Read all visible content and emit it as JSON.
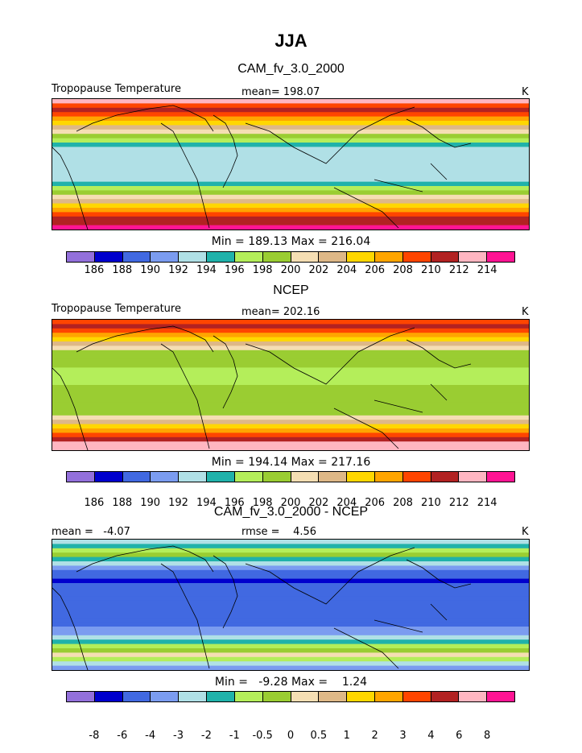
{
  "figure_title": "JJA",
  "colors": {
    "abs_scale": [
      "#9370db",
      "#0000cd",
      "#4169e1",
      "#7b9cf0",
      "#b0e0e6",
      "#20b2aa",
      "#b4ee5a",
      "#9acd32",
      "#f5deb3",
      "#deb887",
      "#ffd700",
      "#ffa500",
      "#ff4500",
      "#b22222",
      "#ffb6c1",
      "#ff1493"
    ],
    "diff_scale": [
      "#9370db",
      "#0000cd",
      "#4169e1",
      "#7b9cf0",
      "#b0e0e6",
      "#20b2aa",
      "#b4ee5a",
      "#9acd32",
      "#f5deb3",
      "#deb887",
      "#ffd700",
      "#ffa500",
      "#ff4500",
      "#b22222",
      "#ffb6c1",
      "#ff1493"
    ],
    "coastline": "#000000"
  },
  "panels": [
    {
      "title": "CAM_fv_3.0_2000",
      "variable": "Tropopause Temperature",
      "mean_label": "mean= 198.07",
      "units": "K",
      "stats": "Min = 189.13 Max = 216.04",
      "ticks": [
        "186",
        "188",
        "190",
        "192",
        "194",
        "196",
        "198",
        "200",
        "202",
        "204",
        "206",
        "208",
        "210",
        "212",
        "214"
      ],
      "bands": [
        14,
        12,
        13,
        12,
        11,
        10,
        9,
        8,
        7,
        6,
        5,
        4,
        4,
        4,
        4,
        4,
        4,
        4,
        4,
        5,
        6,
        7,
        8,
        9,
        10,
        11,
        12,
        13,
        13,
        15
      ]
    },
    {
      "title": "NCEP",
      "variable": "Tropopause Temperature",
      "mean_label": "mean= 202.16",
      "units": "K",
      "stats": "Min = 194.14 Max = 217.16",
      "ticks": [
        "186",
        "188",
        "190",
        "192",
        "194",
        "196",
        "198",
        "200",
        "202",
        "204",
        "206",
        "208",
        "210",
        "212",
        "214"
      ],
      "bands": [
        12,
        13,
        12,
        11,
        10,
        9,
        8,
        7,
        7,
        7,
        7,
        6,
        6,
        6,
        6,
        7,
        7,
        7,
        7,
        7,
        7,
        7,
        8,
        9,
        10,
        11,
        12,
        13,
        14,
        14
      ]
    },
    {
      "title": "CAM_fv_3.0_2000 - NCEP",
      "variable": "",
      "mean_label": "mean =   -4.07",
      "rmse_label": "rmse =    4.56",
      "units": "K",
      "stats": "Min =   -9.28 Max =    1.24",
      "ticks": [
        "-8",
        "-6",
        "-4",
        "-3",
        "-2",
        "-1",
        "-0.5",
        "0",
        "0.5",
        "1",
        "2",
        "3",
        "4",
        "6",
        "8"
      ],
      "bands": [
        4,
        5,
        6,
        7,
        5,
        4,
        3,
        2,
        2,
        1,
        2,
        2,
        2,
        2,
        2,
        2,
        2,
        2,
        2,
        2,
        3,
        3,
        4,
        5,
        6,
        7,
        8,
        6,
        4,
        3
      ]
    }
  ]
}
